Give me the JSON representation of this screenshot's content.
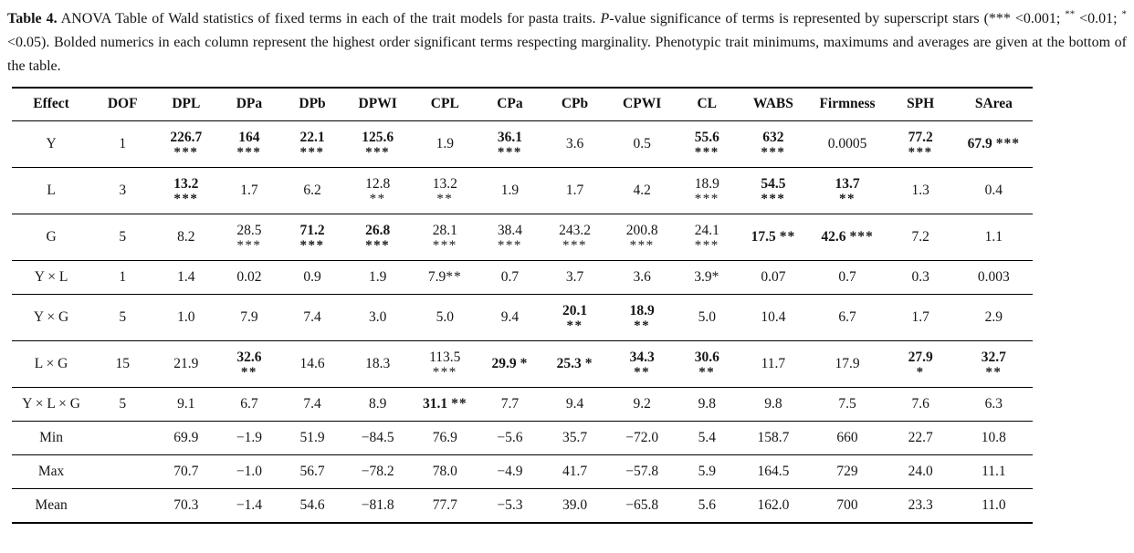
{
  "caption": {
    "segments": [
      {
        "text": "Table 4.",
        "bold": true
      },
      {
        "text": " ANOVA Table of Wald statistics of fixed terms in each of the trait models for pasta traits. "
      },
      {
        "text": "P",
        "italic": true
      },
      {
        "text": "-value significance of terms is represented by superscript stars (*** <0.001; "
      },
      {
        "text": "**",
        "sup": true
      },
      {
        "text": " <0.01; "
      },
      {
        "text": "*",
        "sup": true
      },
      {
        "text": " <0.05). Bolded numerics in each column represent the highest order significant terms respecting marginality. Phenotypic trait minimums, maximums and averages are given at the bottom of the table."
      }
    ]
  },
  "table": {
    "columns": [
      "Effect",
      "DOF",
      "DPL",
      "DPa",
      "DPb",
      "DPWI",
      "CPL",
      "CPa",
      "CPb",
      "CPWI",
      "CL",
      "WABS",
      "Firmness",
      "SPH",
      "SArea"
    ],
    "rows": [
      {
        "effect": "Y",
        "dof": "1",
        "cells": [
          {
            "v": "226.7",
            "stars": "***",
            "bold": true,
            "layout": "stack"
          },
          {
            "v": "164",
            "stars": "***",
            "bold": true,
            "layout": "stack"
          },
          {
            "v": "22.1",
            "stars": "***",
            "bold": true,
            "layout": "stack"
          },
          {
            "v": "125.6",
            "stars": "***",
            "bold": true,
            "layout": "stack"
          },
          {
            "v": "1.9"
          },
          {
            "v": "36.1",
            "stars": "***",
            "bold": true,
            "layout": "stack"
          },
          {
            "v": "3.6"
          },
          {
            "v": "0.5"
          },
          {
            "v": "55.6",
            "stars": "***",
            "bold": true,
            "layout": "stack"
          },
          {
            "v": "632",
            "stars": "***",
            "bold": true,
            "layout": "stack"
          },
          {
            "v": "0.0005"
          },
          {
            "v": "77.2",
            "stars": "***",
            "bold": true,
            "layout": "stack"
          },
          {
            "v": "67.9",
            "stars": "***",
            "bold": true,
            "layout": "inline"
          }
        ]
      },
      {
        "effect": "L",
        "dof": "3",
        "cells": [
          {
            "v": "13.2",
            "stars": "***",
            "bold": true,
            "layout": "stack"
          },
          {
            "v": "1.7"
          },
          {
            "v": "6.2"
          },
          {
            "v": "12.8",
            "stars": "**",
            "layout": "stack"
          },
          {
            "v": "13.2",
            "stars": "**",
            "layout": "stack"
          },
          {
            "v": "1.9"
          },
          {
            "v": "1.7"
          },
          {
            "v": "4.2"
          },
          {
            "v": "18.9",
            "stars": "***",
            "layout": "stack"
          },
          {
            "v": "54.5",
            "stars": "***",
            "bold": true,
            "layout": "stack"
          },
          {
            "v": "13.7",
            "stars": "**",
            "bold": true,
            "layout": "stack"
          },
          {
            "v": "1.3"
          },
          {
            "v": "0.4"
          }
        ]
      },
      {
        "effect": "G",
        "dof": "5",
        "cells": [
          {
            "v": "8.2"
          },
          {
            "v": "28.5",
            "stars": "***",
            "layout": "stack"
          },
          {
            "v": "71.2",
            "stars": "***",
            "bold": true,
            "layout": "stack"
          },
          {
            "v": "26.8",
            "stars": "***",
            "bold": true,
            "layout": "stack"
          },
          {
            "v": "28.1",
            "stars": "***",
            "layout": "stack"
          },
          {
            "v": "38.4",
            "stars": "***",
            "layout": "stack"
          },
          {
            "v": "243.2",
            "stars": "***",
            "layout": "stack"
          },
          {
            "v": "200.8",
            "stars": "***",
            "layout": "stack"
          },
          {
            "v": "24.1",
            "stars": "***",
            "layout": "stack"
          },
          {
            "v": "17.5",
            "stars": "**",
            "bold": true,
            "layout": "inline"
          },
          {
            "v": "42.6",
            "stars": "***",
            "bold": true,
            "layout": "inline"
          },
          {
            "v": "7.2"
          },
          {
            "v": "1.1"
          }
        ]
      },
      {
        "effect": "Y × L",
        "dof": "1",
        "cells": [
          {
            "v": "1.4"
          },
          {
            "v": "0.02"
          },
          {
            "v": "0.9"
          },
          {
            "v": "1.9"
          },
          {
            "v": "7.9",
            "stars": "**",
            "layout": "tight"
          },
          {
            "v": "0.7"
          },
          {
            "v": "3.7"
          },
          {
            "v": "3.6"
          },
          {
            "v": "3.9",
            "stars": "*",
            "layout": "tight"
          },
          {
            "v": "0.07"
          },
          {
            "v": "0.7"
          },
          {
            "v": "0.3"
          },
          {
            "v": "0.003"
          }
        ]
      },
      {
        "effect": "Y × G",
        "dof": "5",
        "cells": [
          {
            "v": "1.0"
          },
          {
            "v": "7.9"
          },
          {
            "v": "7.4"
          },
          {
            "v": "3.0"
          },
          {
            "v": "5.0"
          },
          {
            "v": "9.4"
          },
          {
            "v": "20.1",
            "stars": "**",
            "bold": true,
            "layout": "stack"
          },
          {
            "v": "18.9",
            "stars": "**",
            "bold": true,
            "layout": "stack"
          },
          {
            "v": "5.0"
          },
          {
            "v": "10.4"
          },
          {
            "v": "6.7"
          },
          {
            "v": "1.7"
          },
          {
            "v": "2.9"
          }
        ]
      },
      {
        "effect": "L × G",
        "dof": "15",
        "cells": [
          {
            "v": "21.9"
          },
          {
            "v": "32.6",
            "stars": "**",
            "bold": true,
            "layout": "stack"
          },
          {
            "v": "14.6"
          },
          {
            "v": "18.3"
          },
          {
            "v": "113.5",
            "stars": "***",
            "layout": "stack"
          },
          {
            "v": "29.9",
            "stars": "*",
            "bold": true,
            "layout": "inline"
          },
          {
            "v": "25.3",
            "stars": "*",
            "bold": true,
            "layout": "inline"
          },
          {
            "v": "34.3",
            "stars": "**",
            "bold": true,
            "layout": "stack"
          },
          {
            "v": "30.6",
            "stars": "**",
            "bold": true,
            "layout": "stack"
          },
          {
            "v": "11.7"
          },
          {
            "v": "17.9"
          },
          {
            "v": "27.9",
            "stars": "*",
            "bold": true,
            "layout": "stack"
          },
          {
            "v": "32.7",
            "stars": "**",
            "bold": true,
            "layout": "stack"
          }
        ]
      },
      {
        "effect": "Y × L × G",
        "dof": "5",
        "cells": [
          {
            "v": "9.1"
          },
          {
            "v": "6.7"
          },
          {
            "v": "7.4"
          },
          {
            "v": "8.9"
          },
          {
            "v": "31.1",
            "stars": "**",
            "bold": true,
            "layout": "inline"
          },
          {
            "v": "7.7"
          },
          {
            "v": "9.4"
          },
          {
            "v": "9.2"
          },
          {
            "v": "9.8"
          },
          {
            "v": "9.8"
          },
          {
            "v": "7.5"
          },
          {
            "v": "7.6"
          },
          {
            "v": "6.3"
          }
        ]
      },
      {
        "effect": "Min",
        "dof": "",
        "cells": [
          {
            "v": "69.9"
          },
          {
            "v": "−1.9"
          },
          {
            "v": "51.9"
          },
          {
            "v": "−84.5"
          },
          {
            "v": "76.9"
          },
          {
            "v": "−5.6"
          },
          {
            "v": "35.7"
          },
          {
            "v": "−72.0"
          },
          {
            "v": "5.4"
          },
          {
            "v": "158.7"
          },
          {
            "v": "660"
          },
          {
            "v": "22.7"
          },
          {
            "v": "10.8"
          }
        ]
      },
      {
        "effect": "Max",
        "dof": "",
        "cells": [
          {
            "v": "70.7"
          },
          {
            "v": "−1.0"
          },
          {
            "v": "56.7"
          },
          {
            "v": "−78.2"
          },
          {
            "v": "78.0"
          },
          {
            "v": "−4.9"
          },
          {
            "v": "41.7"
          },
          {
            "v": "−57.8"
          },
          {
            "v": "5.9"
          },
          {
            "v": "164.5"
          },
          {
            "v": "729"
          },
          {
            "v": "24.0"
          },
          {
            "v": "11.1"
          }
        ]
      },
      {
        "effect": "Mean",
        "dof": "",
        "cells": [
          {
            "v": "70.3"
          },
          {
            "v": "−1.4"
          },
          {
            "v": "54.6"
          },
          {
            "v": "−81.8"
          },
          {
            "v": "77.7"
          },
          {
            "v": "−5.3"
          },
          {
            "v": "39.0"
          },
          {
            "v": "−65.8"
          },
          {
            "v": "5.6"
          },
          {
            "v": "162.0"
          },
          {
            "v": "700"
          },
          {
            "v": "23.3"
          },
          {
            "v": "11.0"
          }
        ]
      }
    ]
  },
  "colors": {
    "text": "#161616",
    "rule": "#000000",
    "background": "#ffffff"
  }
}
